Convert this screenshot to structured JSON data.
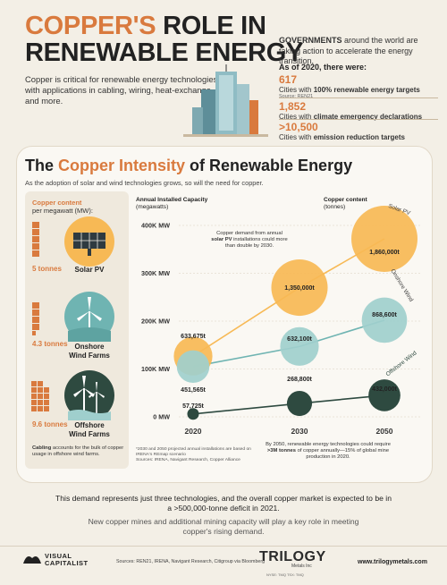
{
  "header": {
    "title_part1": "COPPER'S",
    "title_part2": " ROLE IN",
    "title_line2": "RENEWABLE ENERGY",
    "intro": "Copper is critical for renewable energy technologies with applications in cabling, wiring, heat-exchange, and more."
  },
  "governments": {
    "lead_bold": "GOVERNMENTS",
    "lead_rest": " around the world are taking action to accelerate the energy transition.",
    "as_of": "As of 2020, there were:",
    "stats": [
      {
        "num": "617",
        "pre": "Cities with ",
        "bold": "100% renewable energy targets",
        "src": "Source: REN21"
      },
      {
        "num": "1,852",
        "pre": "Cities with ",
        "bold": "climate emergency declarations",
        "src": ""
      },
      {
        "num": ">10,500",
        "pre": "Cities with ",
        "bold": "emission reduction targets",
        "src": ""
      }
    ]
  },
  "section": {
    "title_a": "The ",
    "title_b": "Copper Intensity",
    "title_c": " of Renewable Energy",
    "subtitle": "As the adoption of solar and wind technologies grows, so will the need for copper."
  },
  "sidebar": {
    "title_line1": "Copper content",
    "title_line2": "per megawatt (MW):",
    "techs": [
      {
        "tonnes": "5 tonnes",
        "label_line1": "Solar PV",
        "label_line2": ""
      },
      {
        "tonnes": "4.3 tonnes",
        "label_line1": "Onshore",
        "label_line2": "Wind Farms"
      },
      {
        "tonnes": "9.6 tonnes",
        "label_line1": "Offshore",
        "label_line2": "Wind Farms"
      }
    ],
    "note_bold": "Cabling",
    "note_rest": " accounts for the bulk of copper usage in offshore wind farms."
  },
  "chart_data": {
    "type": "bubble",
    "ylabel": "Annual Installed Capacity",
    "ylabel_unit": "(megawatts)",
    "size_label": "Copper content",
    "size_unit": "(tonnes)",
    "categories": [
      "2020",
      "2030",
      "2050"
    ],
    "yticks": [
      "0 MW",
      "100K MW",
      "200K MW",
      "300K MW",
      "400K MW"
    ],
    "ylim": [
      0,
      400000
    ],
    "series": [
      {
        "name": "Solar PV",
        "color": "#f7b955",
        "line": "#f7b955",
        "mw": [
          126735,
          270000,
          372000
        ],
        "copper": [
          "633,675t",
          "1,350,000t",
          "1,860,000t"
        ],
        "tonnes": [
          633675,
          1350000,
          1860000
        ]
      },
      {
        "name": "Onshore Wind",
        "color": "#9fcfcd",
        "line": "#6fb4b2",
        "mw": [
          105015,
          147000,
          202000
        ],
        "copper": [
          "451,565t",
          "632,100t",
          "868,600t"
        ],
        "tonnes": [
          451565,
          632100,
          868600
        ]
      },
      {
        "name": "Offshore Wind",
        "color": "#2e4a40",
        "line": "#2e4a40",
        "mw": [
          6013,
          28000,
          45000
        ],
        "copper": [
          "57,725t",
          "268,800t",
          "432,000t"
        ],
        "tonnes": [
          57725,
          268800,
          432000
        ]
      }
    ],
    "annotation_solar_pre": "Copper demand from annual ",
    "annotation_solar_bold": "solar PV",
    "annotation_solar_post": " installations could more than double by 2030.",
    "annotation_2050_pre": "By 2050, renewable energy technologies could require ",
    "annotation_2050_bold": ">3M tonnes",
    "annotation_2050_post": " of copper annually—15% of global mine production in 2020.",
    "footnote": "*2030 and 2050 projected annual installations are based on IRENA's REmap scenario",
    "footnote_sources": "Sources: IRENA, Navigant Research, Copper Alliance"
  },
  "bottom": {
    "line1": "This demand represents just three technologies, and the overall copper market is expected to be in a >500,000-tonne deficit in 2021.",
    "line2": "New copper mines and additional mining capacity will play a key role in meeting copper's rising demand."
  },
  "footer": {
    "vc_line1": "VISUAL",
    "vc_line2": "CAPITALIST",
    "sources": "Sources: REN21, IRENA, Navigant Research, Citigroup via Bloomberg",
    "trilogy": "TRILOGY",
    "trilogy_sub": "Metals Inc",
    "trilogy_tag": "NYSE: TMQ  TSX: TMQ",
    "url": "www.trilogymetals.com"
  },
  "colors": {
    "accent": "#d97a3e",
    "solar": "#f7b955",
    "onshore": "#9fcfcd",
    "offshore": "#2e4a40",
    "background": "#f3efe6"
  }
}
